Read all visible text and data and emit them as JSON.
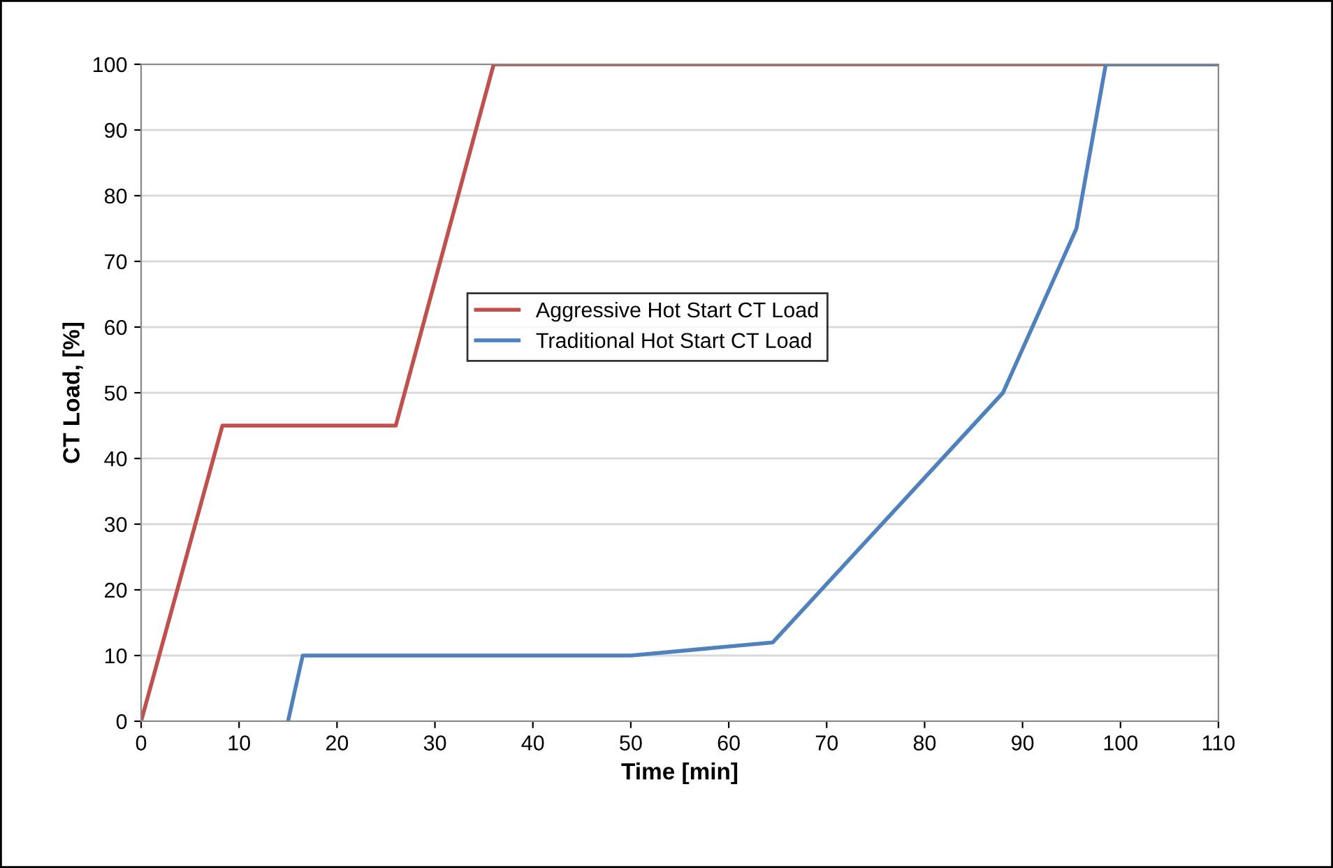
{
  "chart_data": {
    "type": "line",
    "xlabel": "Time [min]",
    "ylabel": "CT Load, [%]",
    "series": [
      {
        "name": "Aggressive Hot Start CT Load",
        "color": "#c0504d",
        "x": [
          0,
          8.3,
          26,
          36,
          110
        ],
        "values": [
          0,
          45,
          45,
          100,
          100
        ]
      },
      {
        "name": "Traditional Hot Start CT Load",
        "color": "#4f81bd",
        "x": [
          15,
          16.5,
          50,
          64.5,
          88,
          95.5,
          98.5,
          110
        ],
        "values": [
          0,
          10,
          10,
          12,
          50,
          75,
          100,
          100
        ]
      }
    ],
    "xlim": [
      0,
      110
    ],
    "xticks": [
      0,
      10,
      20,
      30,
      40,
      50,
      60,
      70,
      80,
      90,
      100,
      110
    ],
    "ylim": [
      0,
      100
    ],
    "yticks": [
      0,
      10,
      20,
      30,
      40,
      50,
      60,
      70,
      80,
      90,
      100
    ],
    "grid": "y",
    "legend": "center",
    "marker": "none",
    "line_style": "solid"
  }
}
